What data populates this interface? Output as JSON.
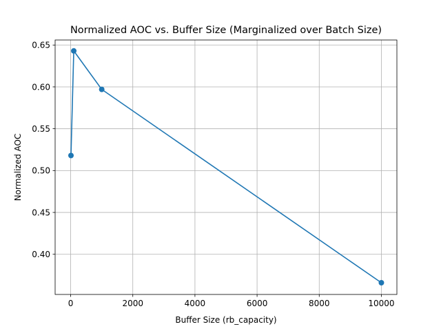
{
  "chart_data": {
    "type": "line",
    "title": "Normalized AOC vs. Buffer Size (Marginalized over Batch Size)",
    "xlabel": "Buffer Size (rb_capacity)",
    "ylabel": "Normalized AOC",
    "xlim": [
      -500,
      10500
    ],
    "ylim": [
      0.352,
      0.656
    ],
    "xticks": [
      0,
      2000,
      4000,
      6000,
      8000,
      10000
    ],
    "xtick_labels": [
      "0",
      "2000",
      "4000",
      "6000",
      "8000",
      "10000"
    ],
    "yticks": [
      0.4,
      0.45,
      0.5,
      0.55,
      0.6,
      0.65
    ],
    "ytick_labels": [
      "0.40",
      "0.45",
      "0.50",
      "0.55",
      "0.60",
      "0.65"
    ],
    "grid": true,
    "series": [
      {
        "color": "#1f77b4",
        "marker": "circle",
        "x": [
          10,
          100,
          1000,
          10000
        ],
        "y": [
          0.518,
          0.643,
          0.597,
          0.366
        ]
      }
    ]
  }
}
